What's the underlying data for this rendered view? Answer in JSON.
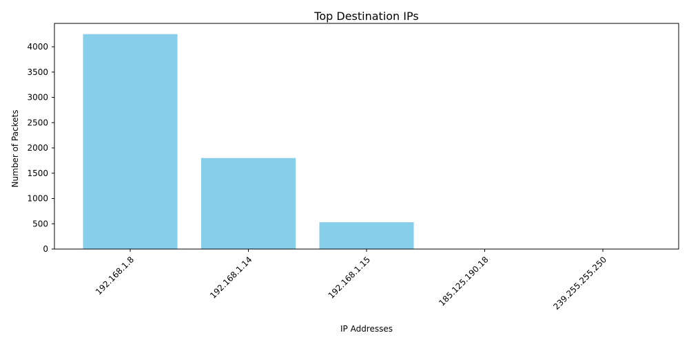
{
  "chart_data": {
    "type": "bar",
    "title": "Top Destination IPs",
    "xlabel": "IP Addresses",
    "ylabel": "Number of Packets",
    "categories": [
      "192.168.1.8",
      "192.168.1.14",
      "192.168.1.15",
      "185.125.190.18",
      "239.255.255.250"
    ],
    "values": [
      4250,
      1800,
      530,
      2,
      1
    ],
    "ylim": [
      0,
      4462.5
    ],
    "yticks": [
      0,
      500,
      1000,
      1500,
      2000,
      2500,
      3000,
      3500,
      4000
    ],
    "bar_color": "#87CEEB",
    "grid": false,
    "legend": "none"
  }
}
